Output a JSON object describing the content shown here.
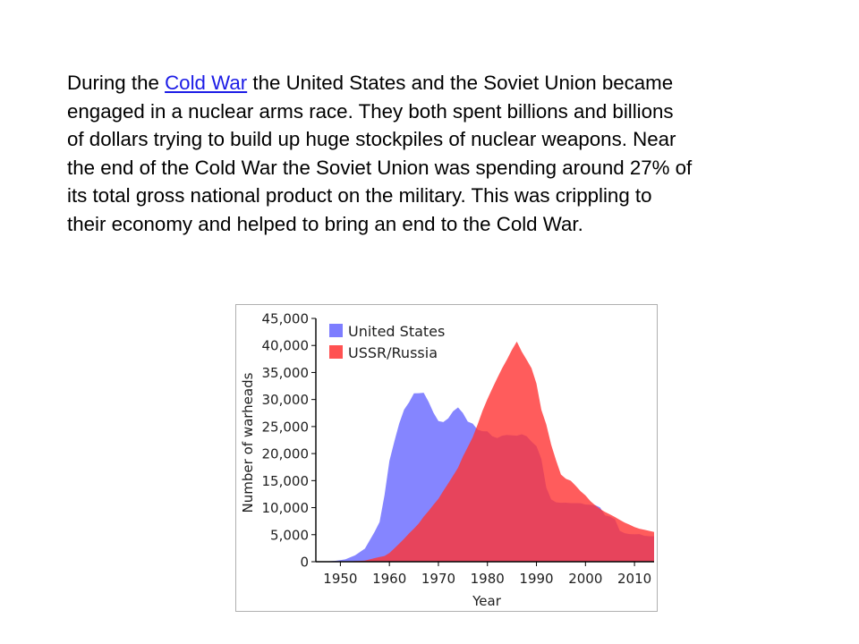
{
  "text": {
    "before_link": "During the ",
    "link": "Cold War",
    "after_link": " the United States and the Soviet Union became engaged in a nuclear arms race. They both spent billions and billions of dollars trying to build up huge stockpiles of nuclear weapons. Near the end of the Cold War the Soviet Union was spending around 27% of its total gross national product on the military. This was crippling to their economy and helped to bring an end to the Cold War.",
    "link_color": "#1c1ce6"
  },
  "chart_data": {
    "type": "area",
    "xlabel": "Year",
    "ylabel": "Number of warheads",
    "xlim": [
      1945,
      2014
    ],
    "ylim": [
      0,
      45000
    ],
    "x_ticks": [
      "1950",
      "1960",
      "1970",
      "1980",
      "1990",
      "2000",
      "2010"
    ],
    "y_ticks": [
      "0",
      "5,000",
      "10,000",
      "15,000",
      "20,000",
      "25,000",
      "30,000",
      "35,000",
      "40,000",
      "45,000"
    ],
    "grid": false,
    "legend": "top-left",
    "series": [
      {
        "name": "United States",
        "color": "#6666ff",
        "x": [
          1945,
          1947,
          1949,
          1951,
          1953,
          1955,
          1957,
          1958,
          1959,
          1960,
          1961,
          1962,
          1963,
          1964,
          1965,
          1966,
          1967,
          1968,
          1969,
          1970,
          1971,
          1972,
          1973,
          1974,
          1975,
          1976,
          1977,
          1978,
          1979,
          1980,
          1981,
          1982,
          1983,
          1984,
          1985,
          1986,
          1987,
          1988,
          1989,
          1990,
          1991,
          1992,
          1993,
          1994,
          1995,
          1996,
          1997,
          1998,
          1999,
          2000,
          2001,
          2002,
          2003,
          2004,
          2005,
          2006,
          2007,
          2008,
          2009,
          2010,
          2011,
          2012,
          2013,
          2014
        ],
        "values": [
          6,
          32,
          170,
          438,
          1169,
          2422,
          5543,
          7345,
          12298,
          18638,
          22229,
          25540,
          28133,
          29463,
          31139,
          31175,
          31255,
          29561,
          27552,
          26008,
          25830,
          26516,
          27835,
          28537,
          27519,
          25914,
          25542,
          24418,
          24138,
          24104,
          23208,
          22886,
          23305,
          23459,
          23368,
          23317,
          23575,
          23205,
          22217,
          21392,
          19008,
          13708,
          11511,
          10979,
          10904,
          10923,
          10829,
          10832,
          10826,
          10577,
          10526,
          10457,
          10027,
          8570,
          8360,
          7853,
          5709,
          5273,
          5113,
          5066,
          5113,
          4804,
          4717,
          4717
        ]
      },
      {
        "name": "USSR/Russia",
        "color": "#ff3333",
        "x": [
          1945,
          1949,
          1950,
          1951,
          1952,
          1953,
          1954,
          1955,
          1956,
          1957,
          1958,
          1959,
          1960,
          1961,
          1962,
          1963,
          1964,
          1965,
          1966,
          1967,
          1968,
          1969,
          1970,
          1971,
          1972,
          1973,
          1974,
          1975,
          1976,
          1977,
          1978,
          1979,
          1980,
          1981,
          1982,
          1983,
          1984,
          1985,
          1986,
          1987,
          1988,
          1989,
          1990,
          1991,
          1992,
          1993,
          1994,
          1995,
          1996,
          1997,
          1998,
          1999,
          2000,
          2001,
          2002,
          2003,
          2004,
          2005,
          2006,
          2007,
          2008,
          2009,
          2010,
          2011,
          2012,
          2013,
          2014
        ],
        "values": [
          0,
          1,
          5,
          25,
          50,
          120,
          150,
          200,
          426,
          660,
          869,
          1060,
          1605,
          2471,
          3322,
          4238,
          5221,
          6129,
          7089,
          8339,
          9399,
          10538,
          11643,
          13092,
          14478,
          15915,
          17385,
          19443,
          21205,
          23044,
          25393,
          27935,
          30062,
          32049,
          33952,
          35804,
          37431,
          39197,
          40723,
          38859,
          37333,
          35805,
          32980,
          28101,
          25393,
          21641,
          18778,
          16128,
          15350,
          14978,
          14057,
          13061,
          12252,
          11221,
          10416,
          9749,
          9192,
          8748,
          8268,
          7719,
          7242,
          6850,
          6400,
          6100,
          5900,
          5700,
          5500
        ]
      }
    ]
  }
}
